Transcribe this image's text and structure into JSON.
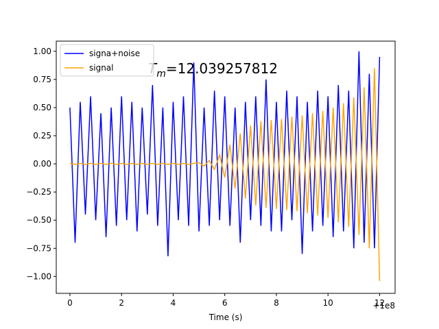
{
  "chart_data": {
    "type": "line",
    "xlabel": "Time (s)",
    "x_offset_label": "+1e8",
    "annotation": {
      "symbol": "T",
      "subscript": "m",
      "text": "=12.039257812"
    },
    "x": [
      0,
      0.2,
      0.4,
      0.6,
      0.8,
      1.0,
      1.2,
      1.4,
      1.6,
      1.8,
      2.0,
      2.2,
      2.4,
      2.6,
      2.8,
      3.0,
      3.2,
      3.4,
      3.6,
      3.8,
      4.0,
      4.2,
      4.4,
      4.6,
      4.8,
      5.0,
      5.2,
      5.4,
      5.6,
      5.8,
      6.0,
      6.2,
      6.4,
      6.6,
      6.8,
      7.0,
      7.2,
      7.4,
      7.6,
      7.8,
      8.0,
      8.2,
      8.4,
      8.6,
      8.8,
      9.0,
      9.2,
      9.4,
      9.6,
      9.8,
      10.0,
      10.2,
      10.4,
      10.6,
      10.8,
      11.0,
      11.2,
      11.4,
      11.6,
      11.8,
      12.0
    ],
    "series": [
      {
        "name": "signa+noise",
        "color": "#0000ff",
        "values": [
          0.5,
          -0.7,
          0.55,
          -0.45,
          0.6,
          -0.5,
          0.45,
          -0.65,
          0.5,
          -0.55,
          0.6,
          -0.5,
          0.55,
          -0.6,
          0.5,
          -0.45,
          0.7,
          -0.55,
          0.5,
          -0.82,
          0.55,
          -0.5,
          0.6,
          -0.55,
          0.9,
          -0.6,
          0.5,
          -0.55,
          0.65,
          -0.5,
          0.6,
          -0.55,
          0.5,
          -0.7,
          0.55,
          -0.5,
          0.6,
          -0.55,
          0.75,
          -0.6,
          0.55,
          -0.6,
          0.65,
          -0.5,
          0.6,
          -0.8,
          0.55,
          -0.6,
          0.65,
          -0.55,
          0.6,
          -0.65,
          0.7,
          -0.6,
          0.65,
          -0.75,
          1.0,
          -0.7,
          0.8,
          -0.75,
          0.95
        ]
      },
      {
        "name": "signal",
        "color": "#ffa500",
        "values": [
          0.005,
          -0.005,
          0.005,
          -0.005,
          0.005,
          -0.005,
          0.005,
          -0.005,
          0.005,
          -0.005,
          0.005,
          -0.005,
          0.005,
          -0.005,
          0.005,
          -0.005,
          0.005,
          -0.005,
          0.005,
          -0.005,
          0.005,
          -0.005,
          0.005,
          -0.005,
          0.005,
          0.01,
          -0.02,
          0.03,
          -0.05,
          0.08,
          -0.12,
          0.17,
          -0.22,
          0.27,
          -0.31,
          0.34,
          -0.37,
          0.38,
          -0.39,
          0.39,
          -0.4,
          0.4,
          -0.41,
          0.42,
          -0.42,
          0.43,
          -0.44,
          0.45,
          -0.46,
          0.47,
          -0.48,
          0.5,
          -0.52,
          0.54,
          -0.56,
          0.59,
          -0.63,
          0.68,
          -0.75,
          0.85,
          -1.04
        ]
      }
    ],
    "xlim": [
      -0.53,
      12.6
    ],
    "ylim": [
      -1.15,
      1.09
    ],
    "xticks": [
      0,
      2,
      4,
      6,
      8,
      10,
      12
    ],
    "yticks": [
      {
        "value": -1,
        "label": "−1.00"
      },
      {
        "value": -0.75,
        "label": "−0.75"
      },
      {
        "value": -0.5,
        "label": "−0.50"
      },
      {
        "value": -0.25,
        "label": "−0.25"
      },
      {
        "value": 0,
        "label": "0.00"
      },
      {
        "value": 0.25,
        "label": "0.25"
      },
      {
        "value": 0.5,
        "label": "0.50"
      },
      {
        "value": 0.75,
        "label": "0.75"
      },
      {
        "value": 1,
        "label": "1.00"
      }
    ],
    "legend": "upper left"
  }
}
